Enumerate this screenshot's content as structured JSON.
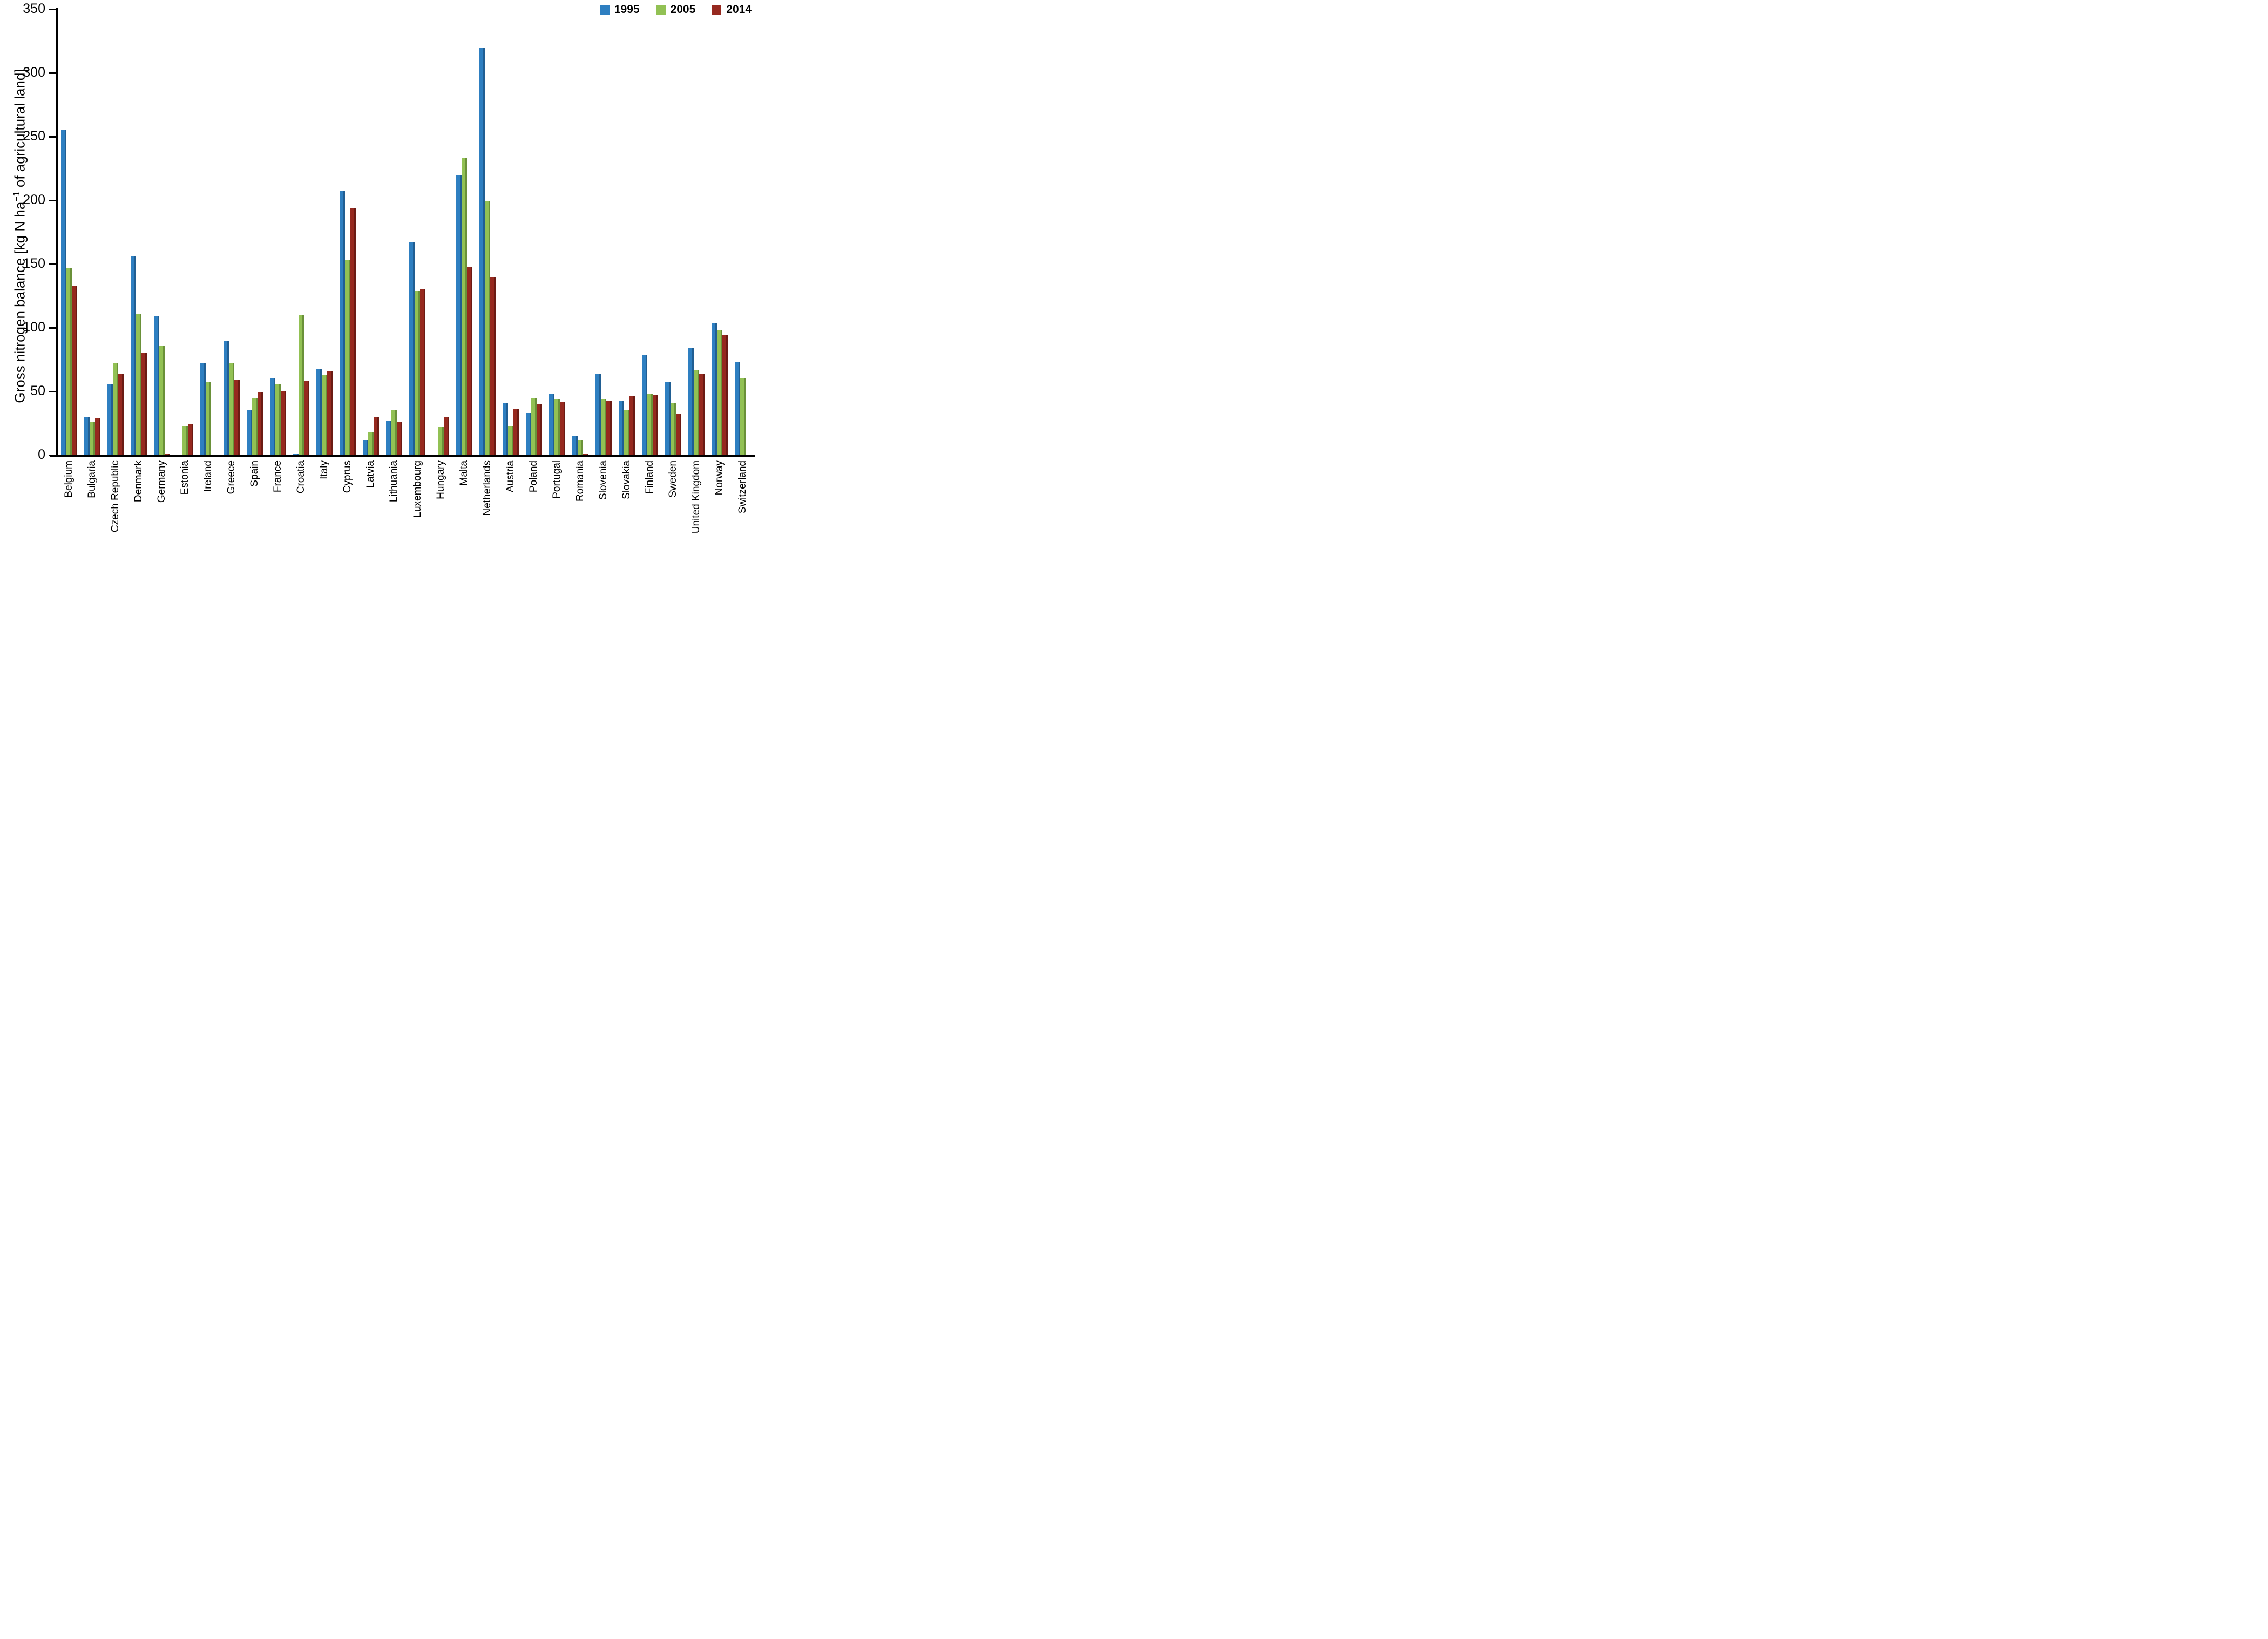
{
  "figure": {
    "ylabel_pre": "Gross nitrogen balance [kg N ha",
    "ylabel_sup": "−1",
    "ylabel_post": " of agricultural land]"
  },
  "chart_data": {
    "type": "bar",
    "title": "",
    "xlabel": "",
    "ylabel": "Gross nitrogen balance [kg N ha-1 of agricultural land]",
    "ylim": [
      0,
      350
    ],
    "yticks": [
      0,
      50,
      100,
      150,
      200,
      250,
      300,
      350
    ],
    "grid": false,
    "legend_position": "top-right",
    "units": "kg N per ha of agricultural land",
    "categories": [
      "Belgium",
      "Bulgaria",
      "Czech Republic",
      "Denmark",
      "Germany",
      "Estonia",
      "Ireland",
      "Greece",
      "Spain",
      "France",
      "Croatia",
      "Italy",
      "Cyprus",
      "Latvia",
      "Lithuania",
      "Luxembourg",
      "Hungary",
      "Malta",
      "Netherlands",
      "Austria",
      "Poland",
      "Portugal",
      "Romania",
      "Slovenia",
      "Slovakia",
      "Finland",
      "Sweden",
      "United Kingdom",
      "Norway",
      "Switzerland"
    ],
    "series": [
      {
        "name": "1995",
        "color": "#2E7FC1",
        "color_dark": "#205E93",
        "values": [
          255,
          30,
          56,
          156,
          109,
          0,
          72,
          90,
          35,
          60,
          1,
          68,
          207,
          12,
          27,
          167,
          0,
          220,
          320,
          41,
          33,
          48,
          15,
          64,
          43,
          79,
          57,
          84,
          104,
          73
        ]
      },
      {
        "name": "2005",
        "color": "#92C154",
        "color_dark": "#6A9139",
        "values": [
          147,
          26,
          72,
          111,
          86,
          23,
          57,
          72,
          45,
          56,
          110,
          63,
          153,
          18,
          35,
          129,
          22,
          233,
          199,
          23,
          45,
          44,
          12,
          44,
          35,
          48,
          41,
          67,
          98,
          60
        ]
      },
      {
        "name": "2014",
        "color": "#96291F",
        "color_dark": "#6B1B14",
        "values": [
          133,
          29,
          64,
          80,
          1,
          24,
          0,
          59,
          49,
          50,
          58,
          66,
          194,
          30,
          26,
          130,
          30,
          148,
          140,
          36,
          40,
          42,
          1,
          43,
          46,
          47,
          32,
          64,
          94,
          0
        ]
      }
    ]
  }
}
